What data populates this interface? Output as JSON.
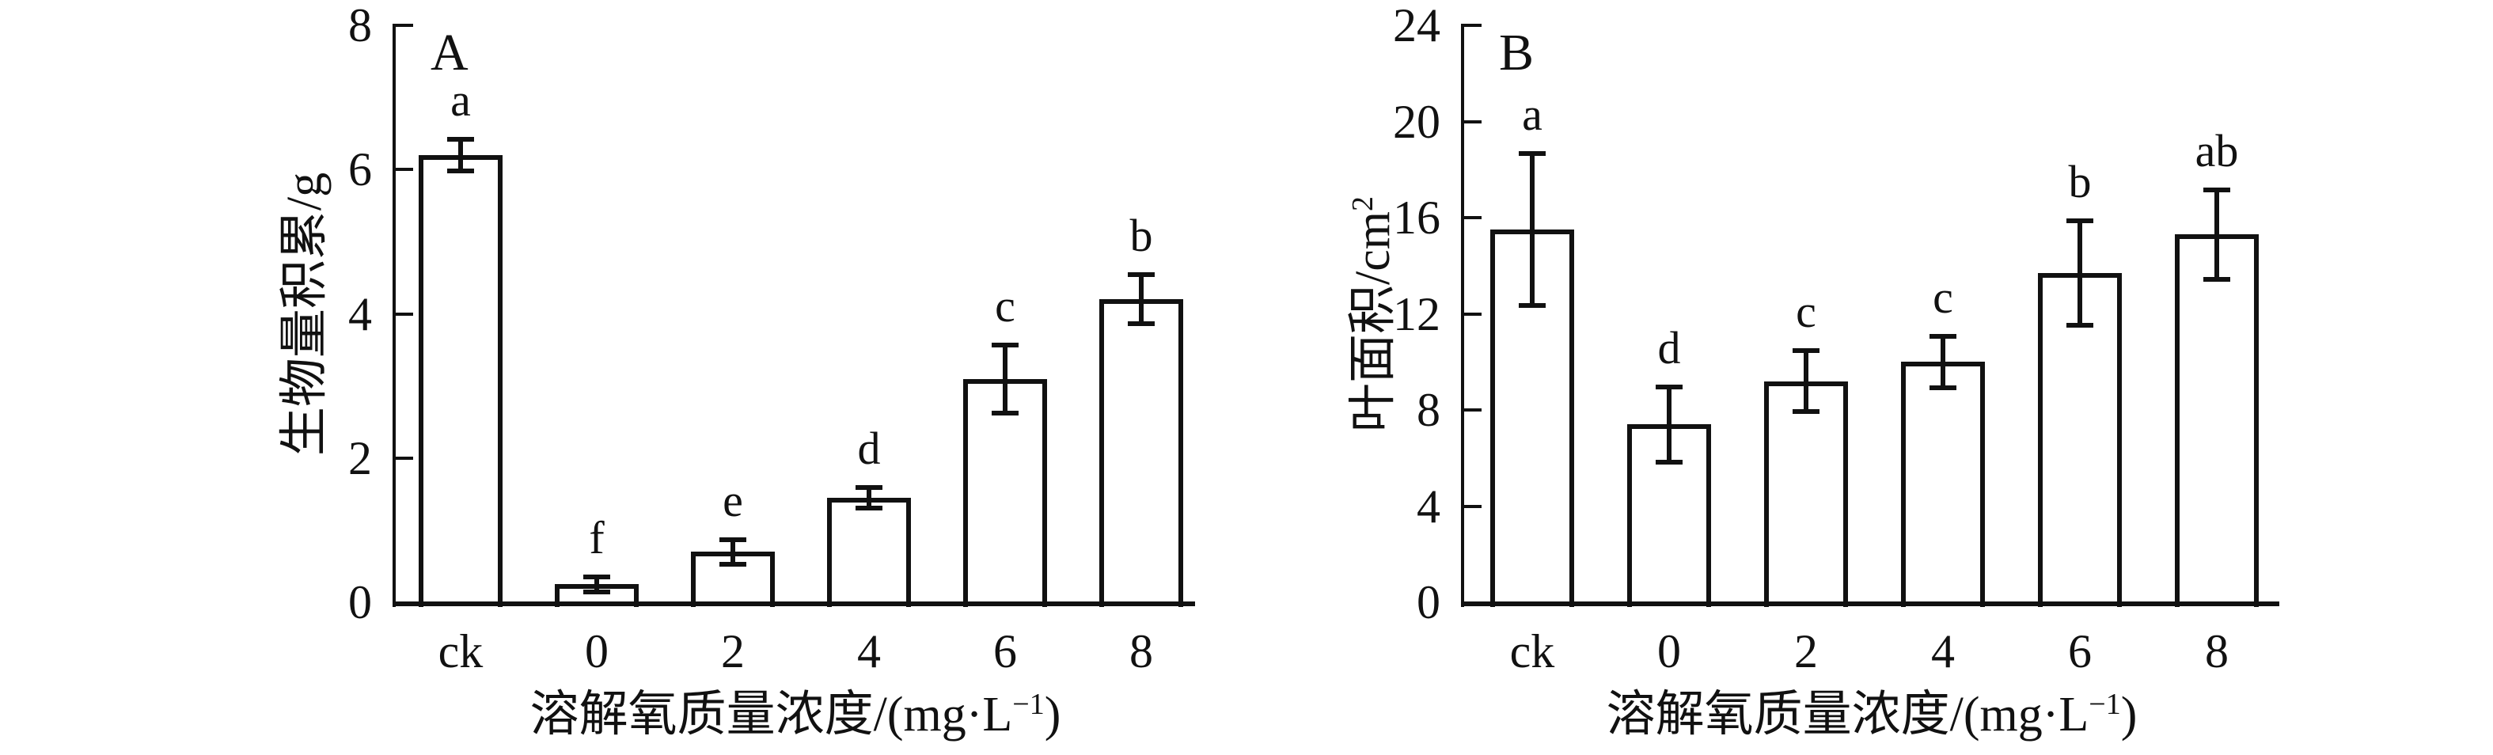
{
  "figure": {
    "background": "#ffffff",
    "ink_color": "#111111",
    "bar_fill": "#ffffff",
    "bar_border": "#111111"
  },
  "chart_data": [
    {
      "type": "bar",
      "panel_label": "A",
      "ylabel_main": "生物量积累/g",
      "ylabel_sup": "",
      "ylabel_tail": "",
      "xlabel_main": "溶解氧质量浓度/(mg·L",
      "xlabel_sup": "−1",
      "xlabel_tail": ")",
      "categories": [
        "ck",
        "0",
        "2",
        "4",
        "6",
        "8"
      ],
      "values": [
        6.2,
        0.25,
        0.7,
        1.45,
        3.1,
        4.2
      ],
      "errors": [
        0.2,
        0.08,
        0.15,
        0.12,
        0.45,
        0.32
      ],
      "sig_letters": [
        "a",
        "f",
        "e",
        "d",
        "c",
        "b"
      ],
      "ylim": [
        0,
        8
      ],
      "yticks": [
        0,
        2,
        4,
        6,
        8
      ],
      "grid": "off",
      "legend": "none"
    },
    {
      "type": "bar",
      "panel_label": "B",
      "ylabel_main": "叶面积/cm",
      "ylabel_sup": "2",
      "ylabel_tail": "",
      "xlabel_main": "溶解氧质量浓度/(mg·L",
      "xlabel_sup": "−1",
      "xlabel_tail": ")",
      "categories": [
        "ck",
        "0",
        "2",
        "4",
        "6",
        "8"
      ],
      "values": [
        15.5,
        7.4,
        9.2,
        10.0,
        13.7,
        15.3
      ],
      "errors": [
        3.1,
        1.5,
        1.2,
        1.0,
        2.1,
        1.8
      ],
      "sig_letters": [
        "a",
        "d",
        "c",
        "c",
        "b",
        "ab"
      ],
      "ylim": [
        0,
        24
      ],
      "yticks": [
        0,
        4,
        8,
        12,
        16,
        20,
        24
      ],
      "grid": "off",
      "legend": "none"
    }
  ]
}
